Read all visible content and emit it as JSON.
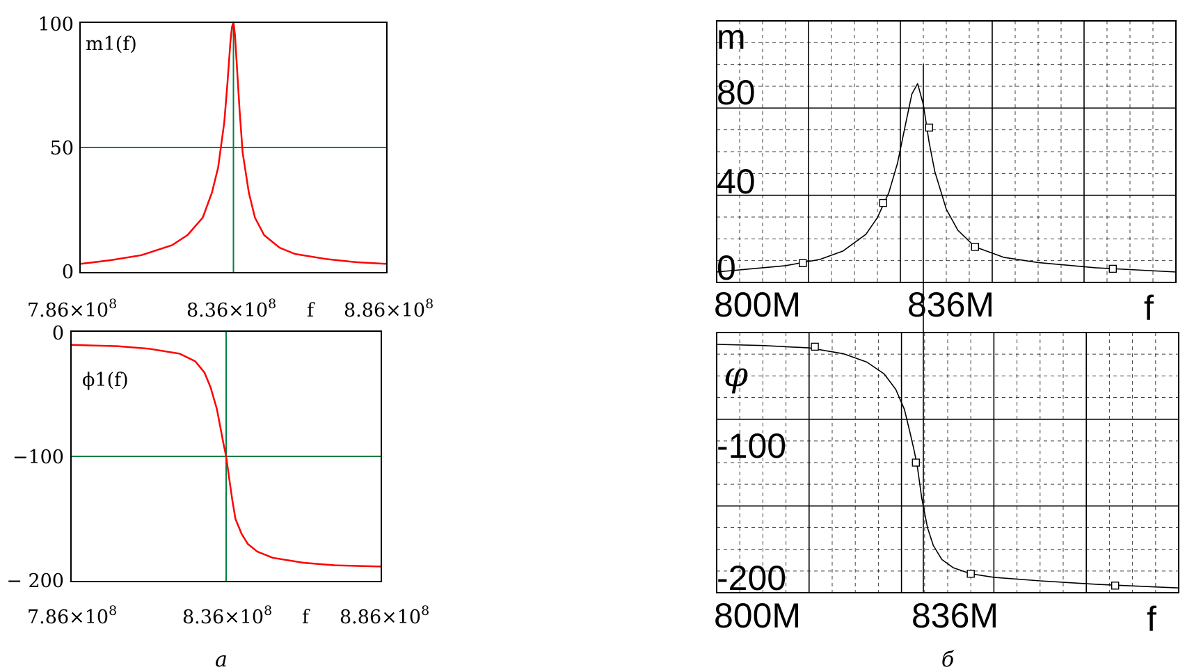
{
  "colors": {
    "a_curve": "#ff0000",
    "a_marker": "#008040",
    "b_curve": "#000000",
    "grid": "#000000"
  },
  "captions": {
    "a": "а",
    "b": "б"
  },
  "chart_data": [
    {
      "id": "a-top",
      "type": "line",
      "series_label": "m1(f)",
      "xlim": [
        786000000,
        886000000
      ],
      "ylim": [
        0,
        100
      ],
      "xticks": [
        {
          "value": 786000000,
          "mant": "7.86×10",
          "exp": "8"
        },
        {
          "value": 836000000,
          "mant": "8.36×10",
          "exp": "8"
        },
        {
          "value": 886000000,
          "mant": "8.86×10",
          "exp": "8"
        }
      ],
      "xlabel": "f",
      "yticks": [
        {
          "value": 0,
          "label": "0"
        },
        {
          "value": 50,
          "label": "50"
        },
        {
          "value": 100,
          "label": "100"
        }
      ],
      "markers": {
        "x": 836000000,
        "y": 50
      },
      "x": [
        786000000,
        796000000,
        806000000,
        816000000,
        821000000,
        826000000,
        829000000,
        831000000,
        833000000,
        834000000,
        835000000,
        835500000,
        836000000,
        836500000,
        837000000,
        838000000,
        839000000,
        841000000,
        843000000,
        846000000,
        851000000,
        856000000,
        866000000,
        876000000,
        886000000
      ],
      "y": [
        3.5,
        5,
        7,
        11,
        15,
        22,
        32,
        42,
        60,
        75,
        92,
        98,
        100,
        95,
        85,
        65,
        48,
        32,
        22,
        15,
        10,
        7.5,
        5.5,
        4.2,
        3.5
      ]
    },
    {
      "id": "a-bottom",
      "type": "line",
      "series_label": "ϕ1(f)",
      "xlim": [
        786000000,
        886000000
      ],
      "ylim": [
        -200,
        0
      ],
      "xticks": [
        {
          "value": 786000000,
          "mant": "7.86×10",
          "exp": "8"
        },
        {
          "value": 836000000,
          "mant": "8.36×10",
          "exp": "8"
        },
        {
          "value": 886000000,
          "mant": "8.86×10",
          "exp": "8"
        }
      ],
      "xlabel": "f",
      "yticks": [
        {
          "value": 0,
          "label": "0"
        },
        {
          "value": -100,
          "label": "−100"
        },
        {
          "value": -200,
          "label": "− 200"
        }
      ],
      "markers": {
        "x": 836000000,
        "y": -100
      },
      "x": [
        786000000,
        801000000,
        811000000,
        821000000,
        826000000,
        829000000,
        831000000,
        833000000,
        834000000,
        835000000,
        836000000,
        837000000,
        838000000,
        839000000,
        841000000,
        843000000,
        846000000,
        851000000,
        861000000,
        871000000,
        886000000
      ],
      "y": [
        -11,
        -12,
        -14,
        -18,
        -24,
        -33,
        -45,
        -62,
        -75,
        -88,
        -100,
        -118,
        -135,
        -150,
        -162,
        -170,
        -176,
        -181,
        -185,
        -187,
        -188
      ]
    },
    {
      "id": "b-top",
      "type": "line",
      "series_label": "m",
      "xlim": [
        800000000,
        880000000
      ],
      "ylim": [
        -5,
        120
      ],
      "xticks": [
        {
          "value": 800000000,
          "label": "800M"
        },
        {
          "value": 836000000,
          "label": "836M"
        }
      ],
      "xlabel": "f",
      "yticks": [
        {
          "value": 0,
          "label": "0"
        },
        {
          "value": 40,
          "label": "40"
        },
        {
          "value": 80,
          "label": "80"
        }
      ],
      "x": [
        800000000,
        806000000,
        812000000,
        818000000,
        822000000,
        826000000,
        828000000,
        830000000,
        831500000,
        833000000,
        834000000,
        835000000,
        836000000,
        837000000,
        838000000,
        840000000,
        842000000,
        845000000,
        850000000,
        856000000,
        866000000,
        880000000
      ],
      "y": [
        0,
        1.5,
        3,
        6,
        10,
        18,
        26,
        38,
        52,
        72,
        85,
        90,
        80,
        62,
        48,
        30,
        20,
        12,
        7,
        4.5,
        2,
        0
      ],
      "points": [
        [
          815000000,
          4.2
        ],
        [
          829000000,
          33
        ],
        [
          837000000,
          69
        ],
        [
          845000000,
          12
        ],
        [
          869000000,
          1.5
        ]
      ]
    },
    {
      "id": "b-bottom",
      "type": "line",
      "series_label": "φ",
      "xlim": [
        800000000,
        880000000
      ],
      "ylim": [
        -210,
        10
      ],
      "xticks": [
        {
          "value": 800000000,
          "label": "800M"
        },
        {
          "value": 836000000,
          "label": "836M"
        }
      ],
      "xlabel": "f",
      "yticks": [
        {
          "value": -100,
          "label": "-100"
        },
        {
          "value": -200,
          "label": "-200"
        }
      ],
      "x": [
        800000000,
        808000000,
        816000000,
        822000000,
        826000000,
        829000000,
        831000000,
        832500000,
        833500000,
        834200000,
        834800000,
        835500000,
        836500000,
        837500000,
        839000000,
        841000000,
        844000000,
        848000000,
        856000000,
        866000000,
        880000000
      ],
      "y": [
        0,
        -1,
        -3,
        -8,
        -15,
        -25,
        -38,
        -55,
        -75,
        -90,
        -105,
        -130,
        -155,
        -170,
        -182,
        -189,
        -194,
        -197,
        -200,
        -203,
        -206
      ],
      "points": [
        [
          817000000,
          -2
        ],
        [
          834500000,
          -100
        ],
        [
          844000000,
          -194
        ],
        [
          869000000,
          -204
        ]
      ]
    }
  ]
}
